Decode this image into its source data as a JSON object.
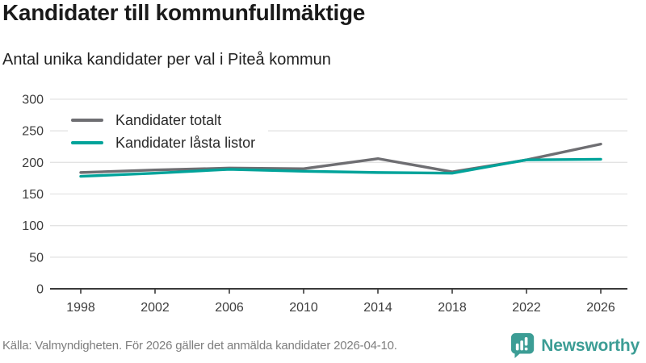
{
  "chart_data": {
    "type": "line",
    "title": "Kandidater till kommunfullmäktige",
    "subtitle": "Antal unika kandidater per val i Piteå kommun",
    "categories": [
      "1998",
      "2002",
      "2006",
      "2010",
      "2014",
      "2018",
      "2022",
      "2026"
    ],
    "series": [
      {
        "name": "Kandidater totalt",
        "color": "#6e6e72",
        "values": [
          184,
          188,
          191,
          190,
          206,
          185,
          204,
          229
        ]
      },
      {
        "name": "Kandidater låsta listor",
        "color": "#00a39a",
        "values": [
          178,
          183,
          189,
          186,
          184,
          183,
          204,
          205
        ]
      }
    ],
    "xlabel": "",
    "ylabel": "",
    "ylim": [
      0,
      300
    ],
    "ytick_step": 50,
    "grid": true,
    "legend_position": "top-left",
    "grid_color": "#e3e3e3",
    "axis_color": "#3a3a3a"
  },
  "footer": {
    "source": "Källa: Valmyndigheten. För 2026 gäller det anmälda kandidater 2026-04-10.",
    "brand": "Newsworthy",
    "brand_color": "#3c9d95"
  }
}
